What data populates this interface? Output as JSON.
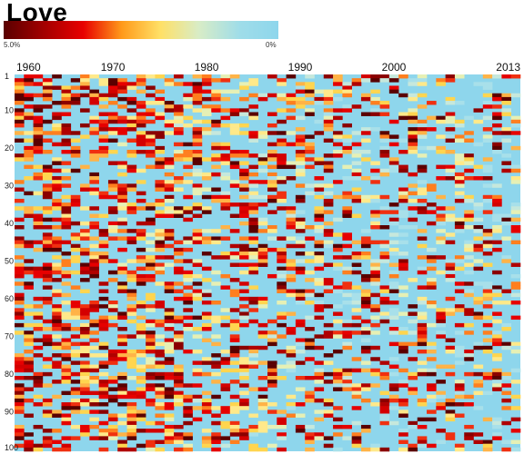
{
  "chart_data": {
    "type": "heatmap",
    "title": "Love",
    "x_start": 1960,
    "x_end": 2013,
    "y_start": 1,
    "y_end": 100,
    "x_ticks": [
      1960,
      1970,
      1980,
      1990,
      2000,
      2013
    ],
    "y_ticks": [
      1,
      10,
      20,
      30,
      40,
      50,
      60,
      70,
      80,
      90,
      100
    ],
    "legend": {
      "min_label": "5.0%",
      "max_label": "0%",
      "colors": [
        "#5a0000",
        "#a00000",
        "#e80000",
        "#ff9a1a",
        "#ffe066",
        "#d8ecc6",
        "#9fdde9",
        "#8ed6ec"
      ]
    },
    "background_color": "#8ed6ec"
  }
}
